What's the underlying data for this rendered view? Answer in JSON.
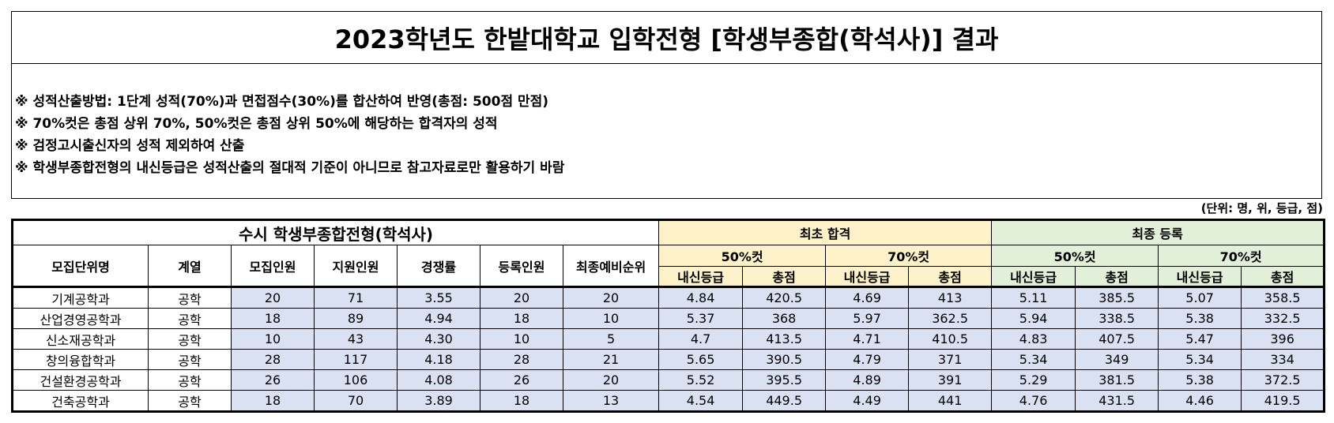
{
  "title": "2023학년도 한밭대학교 입학전형 [학생부종합(학석사)] 결과",
  "notes": [
    "※ 성적산출방법: 1단계 성적(70%)과 면접점수(30%)를 합산하여 반영(총점: 500점 만점)",
    "※ 70%컷은 총점 상위 70%, 50%컷은 총점 상위 50%에 해당하는 합격자의 성적",
    "※ 검정고시출신자의 성적 제외하여 산출",
    "※ 학생부종합전형의 내신등급은 성적산출의 절대적 기준이 아니므로 참고자료로만 활용하기 바람"
  ],
  "unit": "(단위: 명, 위, 등급, 점)",
  "table": {
    "main_title": "수시 학생부종합전형(학석사)",
    "initial_pass": "최초 합격",
    "final_reg": "최종 등록",
    "cut50": "50%컷",
    "cut70": "70%컷",
    "grade": "내신등급",
    "total": "총점",
    "col_headers": [
      "모집단위명",
      "계열",
      "모집인원",
      "지원인원",
      "경쟁률",
      "등록인원",
      "최종예비순위"
    ],
    "rows": [
      [
        "기계공학과",
        "공학",
        "20",
        "71",
        "3.55",
        "20",
        "20",
        "4.84",
        "420.5",
        "4.69",
        "413",
        "5.11",
        "385.5",
        "5.07",
        "358.5"
      ],
      [
        "산업경영공학과",
        "공학",
        "18",
        "89",
        "4.94",
        "18",
        "10",
        "5.37",
        "368",
        "5.97",
        "362.5",
        "5.94",
        "338.5",
        "5.38",
        "332.5"
      ],
      [
        "신소재공학과",
        "공학",
        "10",
        "43",
        "4.30",
        "10",
        "5",
        "4.7",
        "413.5",
        "4.71",
        "410.5",
        "4.83",
        "407.5",
        "5.47",
        "396"
      ],
      [
        "창의융합학과",
        "공학",
        "28",
        "117",
        "4.18",
        "28",
        "21",
        "5.65",
        "390.5",
        "4.79",
        "371",
        "5.34",
        "349",
        "5.34",
        "334"
      ],
      [
        "건설환경공학과",
        "공학",
        "26",
        "106",
        "4.08",
        "26",
        "20",
        "5.52",
        "395.5",
        "4.89",
        "391",
        "5.29",
        "381.5",
        "5.38",
        "372.5"
      ],
      [
        "건축공학과",
        "공학",
        "18",
        "70",
        "3.89",
        "18",
        "13",
        "4.54",
        "449.5",
        "4.49",
        "441",
        "4.76",
        "431.5",
        "4.46",
        "419.5"
      ]
    ]
  }
}
